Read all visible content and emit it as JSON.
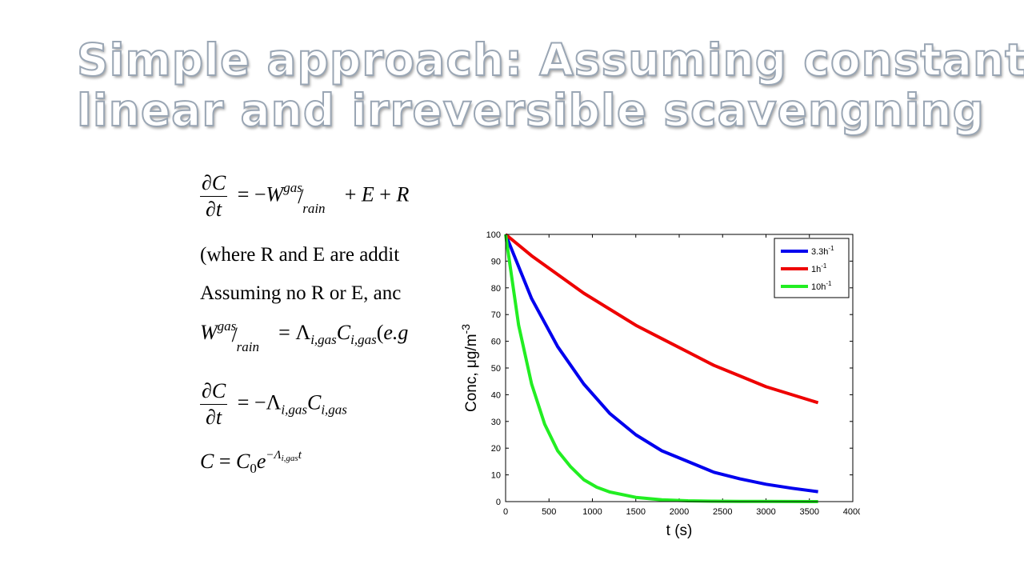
{
  "slide": {
    "title_line1": "Simple approach: Assuming constant,",
    "title_line2": "linear and irreversible scavengning",
    "text1": "(where R and E are addit",
    "text2": "Assuming  no R or E, anc"
  },
  "chart_data": {
    "type": "line",
    "xlabel": "t (s)",
    "ylabel": "Conc, μg/m",
    "ylabel_sup": "-3",
    "xlim": [
      0,
      4000
    ],
    "ylim": [
      0,
      100
    ],
    "xticks": [
      0,
      500,
      1000,
      1500,
      2000,
      2500,
      3000,
      3500,
      4000
    ],
    "yticks": [
      0,
      10,
      20,
      30,
      40,
      50,
      60,
      70,
      80,
      90,
      100
    ],
    "legend_position": "top-right",
    "series": [
      {
        "name": "3.3h",
        "name_sup": "-1",
        "color": "#0000ee",
        "x": [
          0,
          300,
          600,
          900,
          1200,
          1500,
          1800,
          2100,
          2400,
          2700,
          3000,
          3300,
          3600
        ],
        "y": [
          100,
          76,
          58,
          44,
          33,
          25,
          19,
          15,
          11,
          8.5,
          6.5,
          5,
          3.7
        ]
      },
      {
        "name": "1h",
        "name_sup": "-1",
        "color": "#ee0000",
        "x": [
          0,
          300,
          600,
          900,
          1200,
          1500,
          1800,
          2100,
          2400,
          2700,
          3000,
          3300,
          3600
        ],
        "y": [
          100,
          92,
          85,
          78,
          72,
          66,
          61,
          56,
          51,
          47,
          43,
          40,
          37
        ]
      },
      {
        "name": "10h",
        "name_sup": "-1",
        "color": "#22ee22",
        "x": [
          0,
          150,
          300,
          450,
          600,
          750,
          900,
          1050,
          1200,
          1500,
          1800,
          2100,
          2400,
          2700,
          3000,
          3300,
          3600
        ],
        "y": [
          100,
          66,
          44,
          29,
          19,
          13,
          8.2,
          5.4,
          3.6,
          1.6,
          0.7,
          0.3,
          0.15,
          0.1,
          0.05,
          0.02,
          0.01
        ]
      }
    ]
  }
}
